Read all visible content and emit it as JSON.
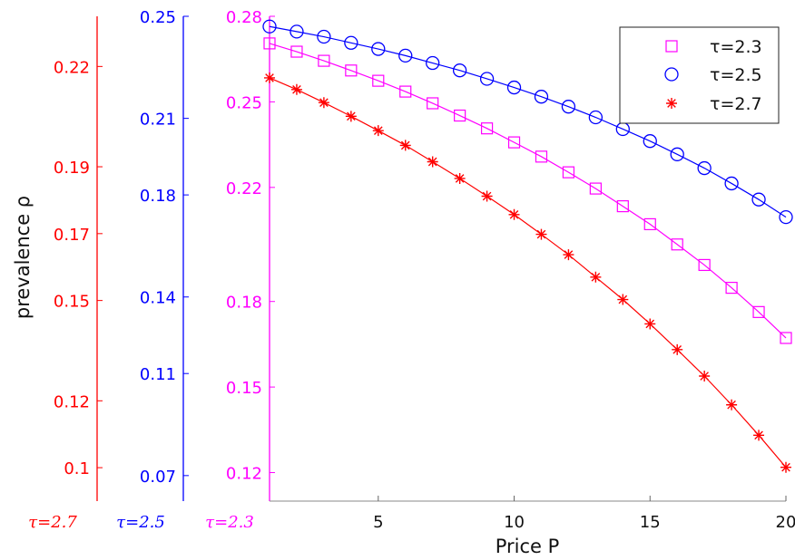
{
  "chart_data": {
    "type": "line",
    "title": "",
    "xlabel": "Price P",
    "ylabel": "prevalence  ρ",
    "xlim": [
      1,
      20
    ],
    "x_ticks": [
      5,
      10,
      15,
      20
    ],
    "x": [
      1,
      2,
      3,
      4,
      5,
      6,
      7,
      8,
      9,
      10,
      11,
      12,
      13,
      14,
      15,
      16,
      17,
      18,
      19,
      20
    ],
    "axes": [
      {
        "label": "τ=2.7",
        "color": "#ff0000",
        "ylim": [
          0.09,
          0.235
        ],
        "ticks": [
          "0.1",
          "0.12",
          "0.15",
          "0.17",
          "0.19",
          "0.22"
        ],
        "tick_values": [
          0.1,
          0.12,
          0.15,
          0.17,
          0.19,
          0.22
        ]
      },
      {
        "label": "τ=2.5",
        "color": "#0000ff",
        "ylim": [
          0.06,
          0.25
        ],
        "ticks": [
          "0.07",
          "0.11",
          "0.14",
          "0.18",
          "0.21",
          "0.25"
        ],
        "tick_values": [
          0.07,
          0.11,
          0.14,
          0.18,
          0.21,
          0.25
        ]
      },
      {
        "label": "τ=2.3",
        "color": "#ff00ff",
        "ylim": [
          0.11,
          0.28
        ],
        "ticks": [
          "0.12",
          "0.15",
          "0.18",
          "0.22",
          "0.25",
          "0.28"
        ],
        "tick_values": [
          0.12,
          0.15,
          0.18,
          0.22,
          0.25,
          0.28
        ]
      }
    ],
    "series": [
      {
        "name": "τ=2.3",
        "color": "#ff00ff",
        "marker": "square",
        "axis": 2,
        "values": [
          0.2705,
          0.2676,
          0.2644,
          0.261,
          0.2574,
          0.2536,
          0.2495,
          0.2452,
          0.2407,
          0.2358,
          0.2308,
          0.2253,
          0.2196,
          0.2134,
          0.2071,
          0.2,
          0.1928,
          0.1848,
          0.1763,
          0.1672
        ]
      },
      {
        "name": "τ=2.5",
        "color": "#0000ff",
        "marker": "circle",
        "axis": 1,
        "values": [
          0.246,
          0.244,
          0.242,
          0.2396,
          0.2372,
          0.2346,
          0.2317,
          0.2288,
          0.2255,
          0.2221,
          0.2185,
          0.2146,
          0.2104,
          0.2058,
          0.2011,
          0.1959,
          0.1905,
          0.1845,
          0.1782,
          0.1713
        ]
      },
      {
        "name": "τ=2.7",
        "color": "#ff0000",
        "marker": "star",
        "axis": 0,
        "values": [
          0.2166,
          0.2131,
          0.2092,
          0.2051,
          0.2008,
          0.1964,
          0.1915,
          0.1865,
          0.1812,
          0.1757,
          0.1698,
          0.1637,
          0.157,
          0.1503,
          0.143,
          0.1353,
          0.1274,
          0.1188,
          0.1097,
          0.1001
        ]
      }
    ],
    "legend": {
      "placement": "top-right",
      "entries": [
        "τ=2.3",
        "τ=2.5",
        "τ=2.7"
      ]
    }
  }
}
